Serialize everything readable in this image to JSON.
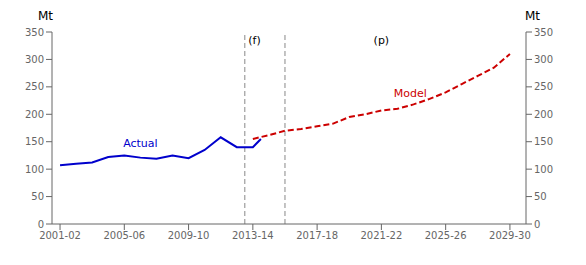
{
  "chart_data": {
    "type": "line",
    "xlim": [
      2000.5,
      2030.0
    ],
    "xticks": [
      {
        "value": 2001,
        "label": "2001-02"
      },
      {
        "value": 2005,
        "label": "2005-06"
      },
      {
        "value": 2009,
        "label": "2009-10"
      },
      {
        "value": 2013,
        "label": "2013-14"
      },
      {
        "value": 2017,
        "label": "2017-18"
      },
      {
        "value": 2021,
        "label": "2021-22"
      },
      {
        "value": 2025,
        "label": "2025-26"
      },
      {
        "value": 2029,
        "label": "2029-30"
      }
    ],
    "ylim": [
      0,
      350
    ],
    "yticks": [
      0,
      50,
      100,
      150,
      200,
      250,
      300,
      350
    ],
    "y2lim": [
      0,
      350
    ],
    "y2ticks": [
      0,
      50,
      100,
      150,
      200,
      250,
      300,
      350
    ],
    "y_label": "Mt",
    "y2_label": "Mt",
    "grid": false,
    "series": [
      {
        "name": "Actual",
        "color": "#0000CC",
        "line_style": "solid",
        "x": [
          2001,
          2002,
          2003,
          2004,
          2005,
          2006,
          2007,
          2008,
          2009,
          2010,
          2011,
          2012,
          2013,
          2013.5
        ],
        "values": [
          107,
          110,
          112,
          122,
          125,
          121,
          119,
          125,
          120,
          135,
          158,
          140,
          140,
          155
        ]
      },
      {
        "name": "Model",
        "color": "#CC0000",
        "line_style": "dashed",
        "x": [
          2013.0,
          2014,
          2015,
          2016,
          2017,
          2018,
          2019,
          2020,
          2021,
          2022,
          2023,
          2024,
          2025,
          2026,
          2027,
          2028,
          2029
        ],
        "values": [
          155,
          162,
          170,
          173,
          178,
          183,
          195,
          200,
          207,
          210,
          218,
          228,
          240,
          255,
          270,
          285,
          310
        ]
      }
    ],
    "vlines": [
      {
        "x": 2012.5,
        "color": "#888888"
      },
      {
        "x": 2015.0,
        "color": "#888888"
      }
    ],
    "annotations": [
      {
        "text": "(f)",
        "x": 2013.1,
        "y": 335,
        "color": "#000000"
      },
      {
        "text": "(p)",
        "x": 2021.0,
        "y": 335,
        "color": "#000000"
      },
      {
        "text": "Actual",
        "x": 2006.0,
        "y": 148,
        "color": "#0000CC"
      },
      {
        "text": "Model",
        "x": 2022.8,
        "y": 238,
        "color": "#CC0000"
      }
    ]
  }
}
